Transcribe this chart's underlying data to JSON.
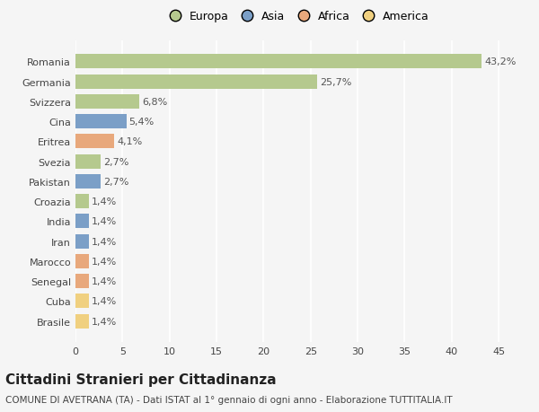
{
  "countries": [
    "Romania",
    "Germania",
    "Svizzera",
    "Cina",
    "Eritrea",
    "Svezia",
    "Pakistan",
    "Croazia",
    "India",
    "Iran",
    "Marocco",
    "Senegal",
    "Cuba",
    "Brasile"
  ],
  "values": [
    43.2,
    25.7,
    6.8,
    5.4,
    4.1,
    2.7,
    2.7,
    1.4,
    1.4,
    1.4,
    1.4,
    1.4,
    1.4,
    1.4
  ],
  "labels": [
    "43,2%",
    "25,7%",
    "6,8%",
    "5,4%",
    "4,1%",
    "2,7%",
    "2,7%",
    "1,4%",
    "1,4%",
    "1,4%",
    "1,4%",
    "1,4%",
    "1,4%",
    "1,4%"
  ],
  "colors": [
    "#b5c98e",
    "#b5c98e",
    "#b5c98e",
    "#7b9fc7",
    "#e8a87c",
    "#b5c98e",
    "#7b9fc7",
    "#b5c98e",
    "#7b9fc7",
    "#7b9fc7",
    "#e8a87c",
    "#e8a87c",
    "#f0d080",
    "#f0d080"
  ],
  "continent_colors": {
    "Europa": "#b5c98e",
    "Asia": "#7b9fc7",
    "Africa": "#e8a87c",
    "America": "#f0d080"
  },
  "xlim": [
    0,
    47
  ],
  "xticks": [
    0,
    5,
    10,
    15,
    20,
    25,
    30,
    35,
    40,
    45
  ],
  "title": "Cittadini Stranieri per Cittadinanza",
  "subtitle": "COMUNE DI AVETRANA (TA) - Dati ISTAT al 1° gennaio di ogni anno - Elaborazione TUTTITALIA.IT",
  "bg_color": "#f5f5f5",
  "bar_height": 0.72,
  "label_fontsize": 8,
  "tick_fontsize": 8,
  "title_fontsize": 11,
  "subtitle_fontsize": 7.5
}
